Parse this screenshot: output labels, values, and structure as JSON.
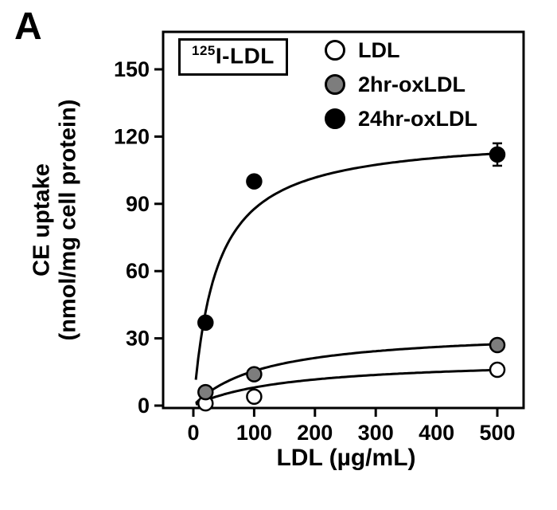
{
  "panel_letter": "A",
  "isotope_label": {
    "superscript": "125",
    "text": "I-LDL"
  },
  "colors": {
    "background": "#ffffff",
    "axis": "#000000",
    "marker_stroke": "#000000",
    "open_marker_fill": "#ffffff",
    "gray_marker_fill": "#7d7d7d",
    "filled_marker_fill": "#000000"
  },
  "chart_data": {
    "type": "scatter",
    "title": "",
    "xlabel": "LDL (µg/mL)",
    "ylabel": "CE uptake (nmol/mg cell protein)",
    "ylabel_lines": [
      "CE uptake",
      "(nmol/mg cell protein)"
    ],
    "xlim": [
      0,
      500
    ],
    "ylim": [
      0,
      150
    ],
    "x_ticks": [
      0,
      100,
      200,
      300,
      400,
      500
    ],
    "y_ticks": [
      0,
      30,
      60,
      90,
      120,
      150
    ],
    "grid": false,
    "legend_position": "top-right-inside",
    "series": [
      {
        "name": "LDL",
        "marker": "open-circle",
        "marker_fill": "#ffffff",
        "x": [
          20,
          100,
          500
        ],
        "y": [
          1,
          4,
          16
        ],
        "y_err": [
          0,
          0,
          0
        ],
        "fit": {
          "type": "michaelis-menten",
          "vmax": 21,
          "km": 160
        }
      },
      {
        "name": "2hr-oxLDL",
        "marker": "gray-circle",
        "marker_fill": "#7d7d7d",
        "x": [
          20,
          100,
          500
        ],
        "y": [
          6,
          14,
          27
        ],
        "y_err": [
          0,
          0,
          0
        ],
        "fit": {
          "type": "michaelis-menten",
          "vmax": 34,
          "km": 120
        }
      },
      {
        "name": "24hr-oxLDL",
        "marker": "filled-circle",
        "marker_fill": "#000000",
        "x": [
          20,
          100,
          500
        ],
        "y": [
          37,
          100,
          112
        ],
        "y_err": [
          0,
          0,
          5
        ],
        "fit": {
          "type": "michaelis-menten",
          "vmax": 121,
          "km": 38
        }
      }
    ]
  }
}
